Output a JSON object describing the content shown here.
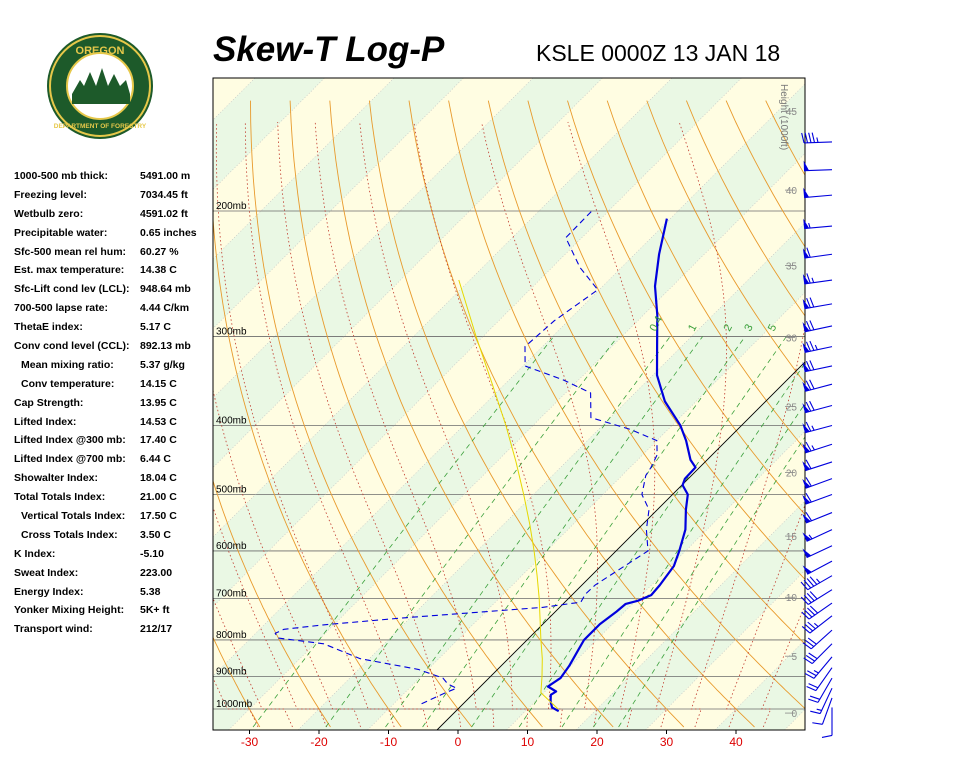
{
  "header": {
    "title": "Skew-T Log-P",
    "station_time": "KSLE 0000Z 13 JAN 18"
  },
  "logo": {
    "top_text": "OREGON",
    "bottom_text": "DEPARTMENT OF FORESTRY"
  },
  "indices": [
    {
      "label": "1000-500 mb thick:",
      "value": "5491.00 m"
    },
    {
      "label": "Freezing level:",
      "value": "7034.45 ft"
    },
    {
      "label": "Wetbulb zero:",
      "value": "4591.02 ft"
    },
    {
      "label": "Precipitable water:",
      "value": "0.65 inches"
    },
    {
      "label": "Sfc-500 mean rel hum:",
      "value": "60.27 %"
    },
    {
      "label": "Est. max temperature:",
      "value": "14.38 C"
    },
    {
      "label": "Sfc-Lift cond lev (LCL):",
      "value": "948.64 mb"
    },
    {
      "label": "700-500 lapse rate:",
      "value": "4.44 C/km"
    },
    {
      "label": "ThetaE index:",
      "value": "5.17 C"
    },
    {
      "label": "Conv cond level (CCL):",
      "value": "892.13 mb"
    },
    {
      "label": "Mean mixing ratio:",
      "value": "5.37 g/kg",
      "indent": true
    },
    {
      "label": "Conv temperature:",
      "value": "14.15 C",
      "indent": true
    },
    {
      "label": "Cap Strength:",
      "value": "13.95 C"
    },
    {
      "label": "Lifted Index:",
      "value": "14.53 C"
    },
    {
      "label": "Lifted Index @300 mb:",
      "value": "17.40 C"
    },
    {
      "label": "Lifted Index @700 mb:",
      "value": "6.44 C"
    },
    {
      "label": "Showalter Index:",
      "value": "18.04 C"
    },
    {
      "label": "Total Totals Index:",
      "value": "21.00 C"
    },
    {
      "label": "Vertical Totals Index:",
      "value": "17.50 C",
      "indent": true
    },
    {
      "label": "Cross Totals Index:",
      "value": "3.50 C",
      "indent": true
    },
    {
      "label": "K Index:",
      "value": "-5.10"
    },
    {
      "label": "Sweat Index:",
      "value": "223.00"
    },
    {
      "label": "Energy Index:",
      "value": "5.38"
    },
    {
      "label": "Yonker Mixing Height:",
      "value": "5K+ ft"
    },
    {
      "label": "Transport wind:",
      "value": "212/17"
    }
  ],
  "chart_data": {
    "type": "line",
    "diagram": "skew-t log-p",
    "x_ticks": [
      -30,
      -20,
      -10,
      0,
      10,
      20,
      30,
      40
    ],
    "pressure_labels": [
      {
        "p": 200,
        "label": "200mb"
      },
      {
        "p": 300,
        "label": "300mb"
      },
      {
        "p": 400,
        "label": "400mb"
      },
      {
        "p": 500,
        "label": "500mb"
      },
      {
        "p": 600,
        "label": "600mb"
      },
      {
        "p": 700,
        "label": "700mb"
      },
      {
        "p": 800,
        "label": "800mb"
      },
      {
        "p": 900,
        "label": "900mb"
      },
      {
        "p": 1000,
        "label": "1000mb"
      }
    ],
    "height_axis": {
      "title": "Height (1000ft)",
      "ticks": [
        0,
        5,
        10,
        15,
        20,
        25,
        30,
        35,
        40,
        45,
        50
      ]
    },
    "mixing_ratio_labels": [
      {
        "label": "0.4",
        "pos": 0.565
      },
      {
        "label": "1",
        "pos": 0.63
      },
      {
        "label": "2",
        "pos": 0.69
      },
      {
        "label": "3",
        "pos": 0.725
      },
      {
        "label": "5",
        "pos": 0.765
      }
    ],
    "series": [
      {
        "key": "temperature",
        "color": "#0000dd",
        "dash": "",
        "width": 2.2,
        "points": [
          [
            1007,
            14.8
          ],
          [
            995,
            13.3
          ],
          [
            975,
            12.2
          ],
          [
            955,
            11.3
          ],
          [
            945,
            11.6
          ],
          [
            930,
            9.7
          ],
          [
            905,
            10.3
          ],
          [
            870,
            9.8
          ],
          [
            830,
            8.9
          ],
          [
            800,
            8.2
          ],
          [
            760,
            8.2
          ],
          [
            730,
            8.8
          ],
          [
            712,
            9.0
          ],
          [
            705,
            10.3
          ],
          [
            692,
            11.4
          ],
          [
            670,
            11.2
          ],
          [
            630,
            10.5
          ],
          [
            600,
            9.1
          ],
          [
            560,
            6.9
          ],
          [
            525,
            4.1
          ],
          [
            500,
            2.2
          ],
          [
            485,
            0.1
          ],
          [
            475,
            -0.5
          ],
          [
            458,
            -0.6
          ],
          [
            447,
            -2.4
          ],
          [
            420,
            -5.8
          ],
          [
            400,
            -8.8
          ],
          [
            370,
            -14.5
          ],
          [
            340,
            -19.4
          ],
          [
            310,
            -23.5
          ],
          [
            280,
            -28.0
          ],
          [
            255,
            -32.5
          ],
          [
            230,
            -36.5
          ],
          [
            205,
            -40.5
          ]
        ]
      },
      {
        "key": "dewpoint",
        "color": "#0000dd",
        "dash": "6,4",
        "width": 1.1,
        "points": [
          [
            983,
            -6.0
          ],
          [
            970,
            -5.3
          ],
          [
            948,
            -4.1
          ],
          [
            935,
            -3.2
          ],
          [
            922,
            -5.1
          ],
          [
            905,
            -6.6
          ],
          [
            880,
            -11.4
          ],
          [
            850,
            -21.3
          ],
          [
            810,
            -28.7
          ],
          [
            795,
            -36.1
          ],
          [
            783,
            -37.2
          ],
          [
            773,
            -36.5
          ],
          [
            762,
            -31.5
          ],
          [
            745,
            -21.0
          ],
          [
            720,
            -2.5
          ],
          [
            708,
            2.3
          ],
          [
            690,
            1.8
          ],
          [
            670,
            1.9
          ],
          [
            600,
            4.6
          ],
          [
            560,
            1.3
          ],
          [
            525,
            -1.2
          ],
          [
            500,
            -4.4
          ],
          [
            470,
            -6.6
          ],
          [
            458,
            -7.0
          ],
          [
            440,
            -7.9
          ],
          [
            420,
            -10.0
          ],
          [
            405,
            -15.5
          ],
          [
            390,
            -22.8
          ],
          [
            360,
            -26.4
          ],
          [
            345,
            -32.3
          ],
          [
            330,
            -39.7
          ],
          [
            310,
            -42.5
          ],
          [
            285,
            -42.0
          ],
          [
            258,
            -40.2
          ],
          [
            240,
            -46.0
          ],
          [
            218,
            -52.3
          ],
          [
            200,
            -52.4
          ]
        ]
      },
      {
        "key": "parcel",
        "color": "#e6d800",
        "dash": "",
        "width": 1.0,
        "points": [
          [
            1000,
            14.4
          ],
          [
            949,
            9.6
          ],
          [
            900,
            7.4
          ],
          [
            850,
            4.9
          ],
          [
            800,
            2.0
          ],
          [
            750,
            -1.0
          ],
          [
            700,
            -4.2
          ],
          [
            650,
            -7.8
          ],
          [
            600,
            -11.8
          ],
          [
            550,
            -16.3
          ],
          [
            500,
            -21.4
          ],
          [
            450,
            -27.2
          ],
          [
            400,
            -33.9
          ],
          [
            350,
            -41.8
          ],
          [
            300,
            -51.0
          ],
          [
            250,
            -61.6
          ]
        ]
      }
    ]
  },
  "wind_barbs": {
    "color": "#0000dd",
    "barbs": [
      [
        995,
        180,
        8
      ],
      [
        965,
        200,
        12
      ],
      [
        935,
        205,
        15
      ],
      [
        905,
        210,
        18
      ],
      [
        875,
        215,
        22
      ],
      [
        845,
        220,
        25
      ],
      [
        810,
        225,
        30
      ],
      [
        775,
        228,
        32
      ],
      [
        740,
        232,
        35
      ],
      [
        710,
        235,
        38
      ],
      [
        680,
        238,
        42
      ],
      [
        650,
        240,
        45
      ],
      [
        620,
        242,
        48
      ],
      [
        590,
        245,
        52
      ],
      [
        560,
        245,
        55
      ],
      [
        530,
        248,
        58
      ],
      [
        500,
        250,
        60
      ],
      [
        475,
        250,
        62
      ],
      [
        450,
        252,
        62
      ],
      [
        425,
        252,
        65
      ],
      [
        400,
        255,
        65
      ],
      [
        375,
        255,
        68
      ],
      [
        350,
        255,
        70
      ],
      [
        330,
        258,
        72
      ],
      [
        310,
        258,
        75
      ],
      [
        290,
        258,
        72
      ],
      [
        270,
        260,
        70
      ],
      [
        250,
        262,
        65
      ],
      [
        230,
        262,
        60
      ],
      [
        210,
        265,
        55
      ],
      [
        190,
        265,
        50
      ],
      [
        175,
        268,
        48
      ],
      [
        160,
        268,
        45
      ]
    ]
  }
}
